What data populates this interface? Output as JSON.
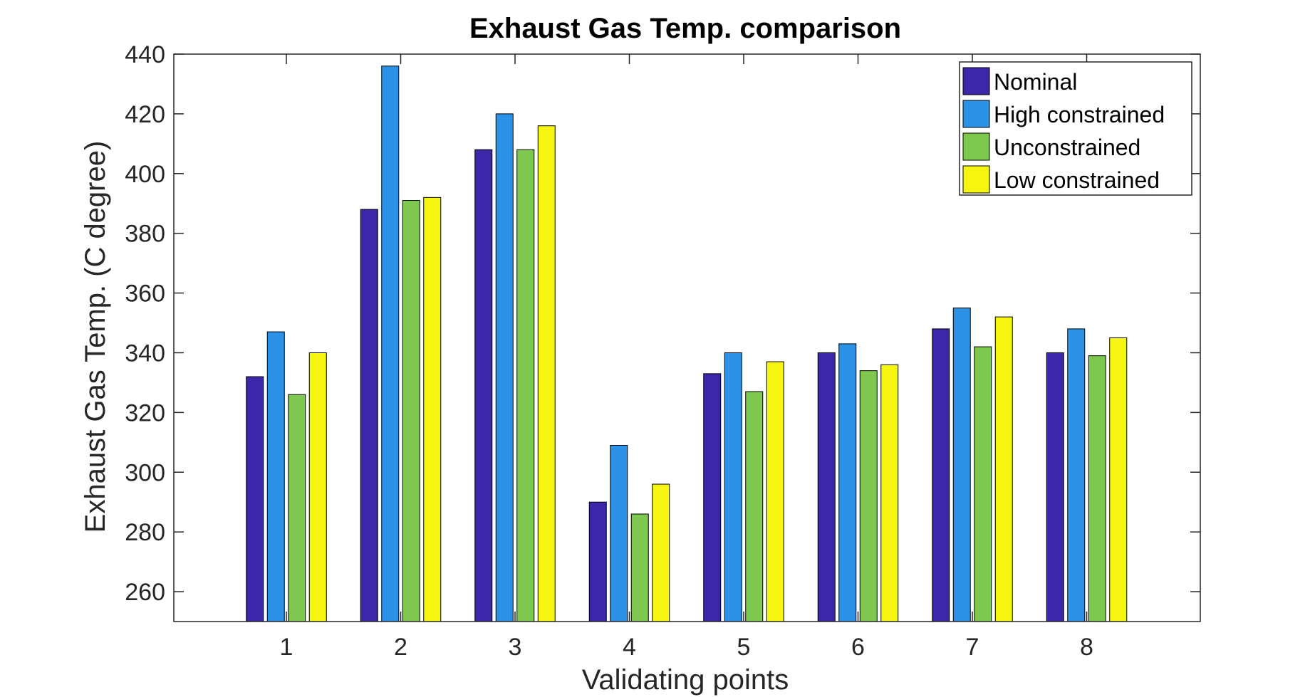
{
  "chart_data": {
    "type": "bar",
    "title": "Exhaust Gas Temp. comparison",
    "xlabel": "Validating points",
    "ylabel": "Exhaust Gas Temp. (C degree)",
    "categories": [
      "1",
      "2",
      "3",
      "4",
      "5",
      "6",
      "7",
      "8"
    ],
    "ylim": [
      250,
      440
    ],
    "yticks": [
      260,
      280,
      300,
      320,
      340,
      360,
      380,
      400,
      420,
      440
    ],
    "grid": false,
    "legend_position": "top-right",
    "series": [
      {
        "name": "Nominal",
        "color": "#3b27a8",
        "values": [
          332,
          388,
          408,
          290,
          333,
          340,
          348,
          340
        ]
      },
      {
        "name": "High constrained",
        "color": "#2b92e8",
        "values": [
          347,
          436,
          420,
          309,
          340,
          343,
          355,
          348
        ]
      },
      {
        "name": "Unconstrained",
        "color": "#7ec850",
        "values": [
          326,
          391,
          408,
          286,
          327,
          334,
          342,
          339
        ]
      },
      {
        "name": "Low constrained",
        "color": "#f5f510",
        "values": [
          340,
          392,
          416,
          296,
          337,
          336,
          352,
          345
        ]
      }
    ]
  }
}
